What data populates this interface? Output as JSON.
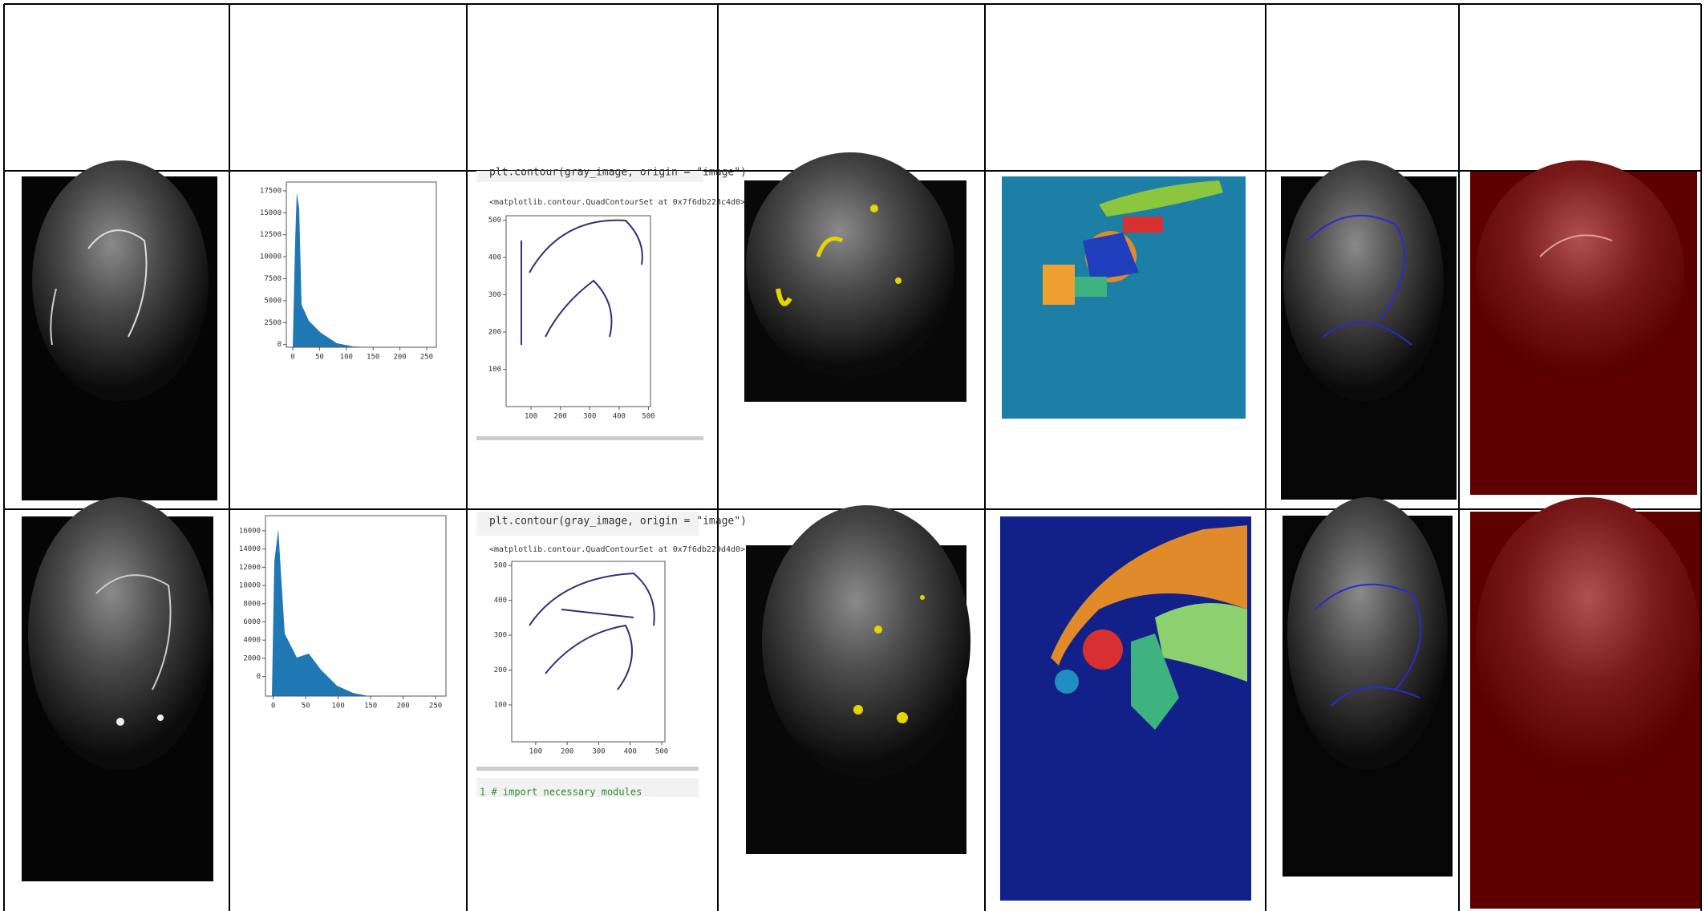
{
  "rows": [
    {
      "histogram": {
        "xlim": [
          -12,
          268
        ],
        "ylim": [
          -300,
          18500
        ],
        "xticks": [
          0,
          50,
          100,
          150,
          200,
          250
        ],
        "yticks": [
          0,
          2500,
          5000,
          7500,
          10000,
          12500,
          15000,
          17500
        ]
      },
      "contour": {
        "code": "plt.contour(gray_image, origin = \"image\")",
        "output": "<matplotlib.contour.QuadContourSet at 0x7f6db223c4d0>",
        "xlim": [
          15,
          507
        ],
        "ylim": [
          0,
          512
        ],
        "xticks": [
          100,
          200,
          300,
          400,
          500
        ],
        "yticks": [
          100,
          200,
          300,
          400,
          500
        ]
      }
    },
    {
      "histogram": {
        "xlim": [
          -12,
          266
        ],
        "ylim": [
          -2150,
          17670
        ],
        "xticks": [
          0,
          50,
          100,
          150,
          200,
          250
        ],
        "yticks": [
          0,
          2000,
          4000,
          6000,
          8000,
          10000,
          12000,
          14000,
          16000
        ]
      },
      "contour": {
        "code": "plt.contour(gray_image, origin = \"image\")",
        "output": "<matplotlib.contour.QuadContourSet at 0x7f6db229d4d0>",
        "xlim": [
          24,
          510
        ],
        "ylim": [
          -6,
          512
        ],
        "xticks": [
          100,
          200,
          300,
          400,
          500
        ],
        "yticks": [
          100,
          200,
          300,
          400,
          500
        ],
        "next_code": "1  # import necessary modules"
      }
    }
  ]
}
